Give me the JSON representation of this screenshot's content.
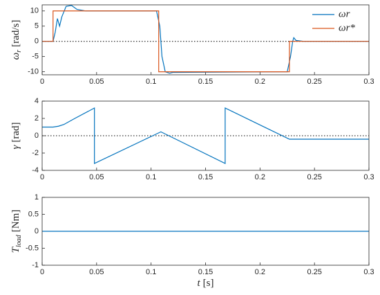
{
  "chart_data": [
    {
      "type": "line",
      "ylabel": "ω",
      "ylabel_subscript": "r",
      "ylabel_unit": "[rad/s]",
      "xlim": [
        0,
        0.3
      ],
      "xticks": [
        0,
        0.05,
        0.1,
        0.15,
        0.2,
        0.25,
        0.3
      ],
      "ylim": [
        -11,
        12
      ],
      "yticks": [
        -10,
        -5,
        0,
        5,
        10
      ],
      "zero_line": true,
      "legend": "upper right",
      "series": [
        {
          "name": "ωr",
          "color": "#0072bd",
          "x": [
            0,
            0.01,
            0.012,
            0.014,
            0.016,
            0.018,
            0.022,
            0.027,
            0.032,
            0.04,
            0.105,
            0.108,
            0.11,
            0.113,
            0.117,
            0.12,
            0.225,
            0.228,
            0.23,
            0.231,
            0.233,
            0.24,
            0.3
          ],
          "values": [
            0,
            0,
            3,
            7.5,
            5,
            8,
            11.5,
            11.8,
            10.5,
            10,
            10,
            5,
            -5,
            -10,
            -10.5,
            -10.2,
            -10,
            -5,
            0,
            1.2,
            0.3,
            0,
            0
          ]
        },
        {
          "name": "ωr*",
          "color": "#d95319",
          "x": [
            0,
            0.01,
            0.01,
            0.107,
            0.107,
            0.227,
            0.227,
            0.3
          ],
          "values": [
            0,
            0,
            10,
            10,
            -10,
            -10,
            0,
            0
          ]
        }
      ]
    },
    {
      "type": "line",
      "ylabel": "γ",
      "ylabel_unit": "[rad]",
      "xlim": [
        0,
        0.3
      ],
      "xticks": [
        0,
        0.05,
        0.1,
        0.15,
        0.2,
        0.25,
        0.3
      ],
      "ylim": [
        -4,
        4
      ],
      "yticks": [
        -4,
        -2,
        0,
        2,
        4
      ],
      "zero_line": true,
      "series": [
        {
          "color": "#0072bd",
          "x": [
            0,
            0.01,
            0.015,
            0.02,
            0.03,
            0.048,
            0.048,
            0.109,
            0.168,
            0.168,
            0.227,
            0.3
          ],
          "values": [
            1,
            1,
            1.1,
            1.3,
            2,
            3.2,
            -3.2,
            0.45,
            -3.2,
            3.2,
            -0.4,
            -0.4
          ]
        }
      ]
    },
    {
      "type": "line",
      "ylabel": "T",
      "ylabel_subscript": "load",
      "ylabel_unit": "[Nm]",
      "xlabel": "t",
      "xlabel_unit": "[s]",
      "xlim": [
        0,
        0.3
      ],
      "xticks": [
        0,
        0.05,
        0.1,
        0.15,
        0.2,
        0.25,
        0.3
      ],
      "ylim": [
        -1,
        1
      ],
      "yticks": [
        -1,
        -0.5,
        0,
        0.5,
        1
      ],
      "zero_line": true,
      "series": [
        {
          "color": "#0072bd",
          "x": [
            0,
            0.3
          ],
          "values": [
            0,
            0
          ]
        }
      ]
    }
  ]
}
